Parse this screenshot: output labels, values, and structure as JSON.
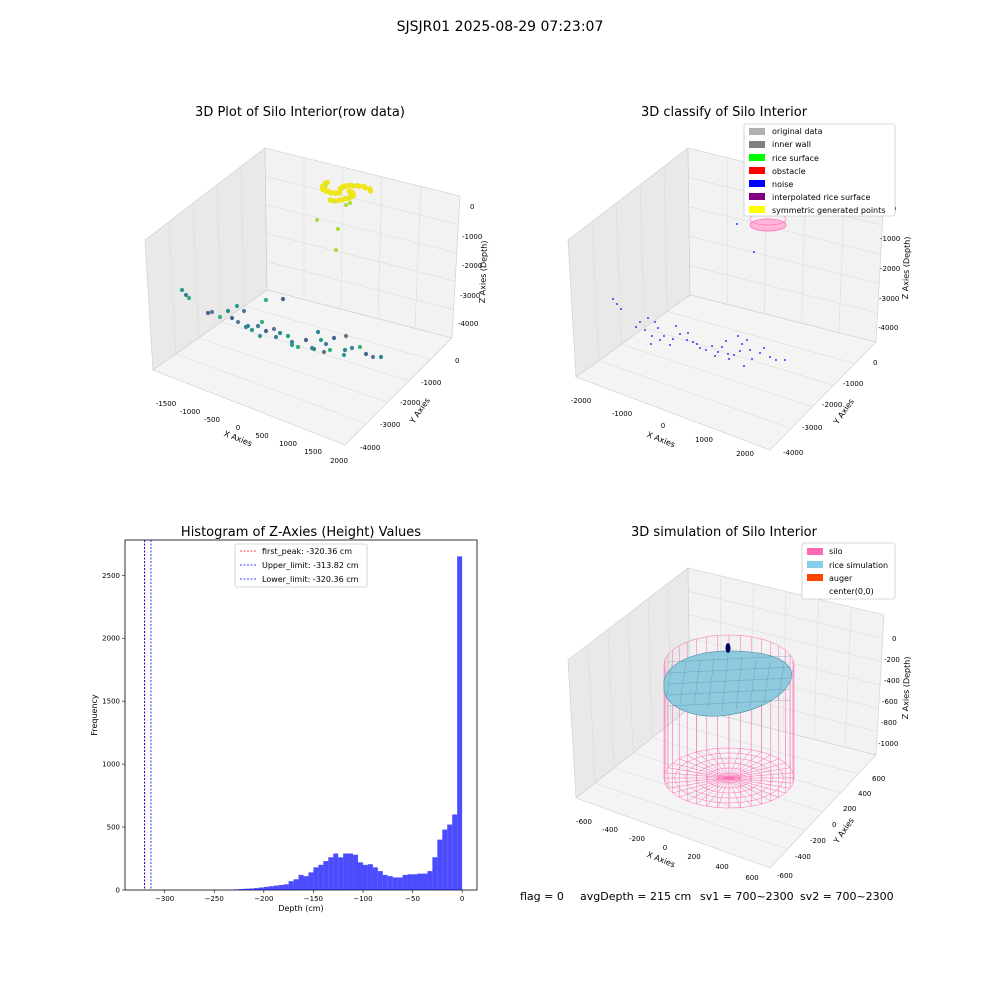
{
  "figure": {
    "suptitle": "SJSJR01 2025-08-29 07:23:07",
    "footer": {
      "flag": "flag = 0",
      "avg_depth": "avgDepth = 215 cm",
      "sv1": "sv1 = 700~2300",
      "sv2": "sv2 = 700~2300"
    }
  },
  "chart_data": [
    {
      "type": "scatter",
      "projection": "3d",
      "title": "3D Plot of Silo Interior(row data)",
      "xlabel": "X Axies",
      "ylabel": "Y Axies",
      "zlabel": "Z Axies (Depth)",
      "xticks": [
        "-1500",
        "-1000",
        "-500",
        "0",
        "500",
        "1000",
        "1500",
        "2000"
      ],
      "yticks": [
        "0",
        "-1000",
        "-2000",
        "-3000",
        "-4000"
      ],
      "zticks": [
        "0",
        "-1000",
        "-2000",
        "-3000",
        "-4000"
      ],
      "colormap": "viridis (colored by depth)",
      "points_description": "dense yellow cluster near depth 0; scattered teal/blue points near depth -4000"
    },
    {
      "type": "scatter",
      "projection": "3d",
      "title": "3D classify of Silo Interior",
      "xlabel": "X Axies",
      "ylabel": "Y Axies",
      "zlabel": "Z Axies (Depth)",
      "xticks": [
        "-2000",
        "-1000",
        "0",
        "1000",
        "2000"
      ],
      "yticks": [
        "0",
        "-1000",
        "-2000",
        "-3000",
        "-4000"
      ],
      "zticks": [
        "0",
        "-1000",
        "-2000",
        "-3000",
        "-4000"
      ],
      "legend": [
        {
          "label": "original data",
          "color": "#b0b0b0"
        },
        {
          "label": "inner wall",
          "color": "#808080"
        },
        {
          "label": "rice surface",
          "color": "#00ff00"
        },
        {
          "label": "obstacle",
          "color": "#ff0000"
        },
        {
          "label": "noise",
          "color": "#0000ff"
        },
        {
          "label": "interpolated rice surface",
          "color": "#800080"
        },
        {
          "label": "symmetric generated points",
          "color": "#ffff00"
        }
      ]
    },
    {
      "type": "bar",
      "title": "Histogram of Z-Axies (Height) Values",
      "xlabel": "Depth (cm)",
      "ylabel": "Frequency",
      "xlim": [
        -340,
        15
      ],
      "ylim": [
        0,
        2780
      ],
      "xticks": [
        -300,
        -250,
        -200,
        -150,
        -100,
        -50,
        0
      ],
      "yticks": [
        0,
        500,
        1000,
        1500,
        2000,
        2500
      ],
      "bin_width": 5,
      "bin_left_edges": [
        -240,
        -235,
        -230,
        -225,
        -220,
        -215,
        -210,
        -205,
        -200,
        -195,
        -190,
        -185,
        -180,
        -175,
        -170,
        -165,
        -160,
        -155,
        -150,
        -145,
        -140,
        -135,
        -130,
        -125,
        -120,
        -115,
        -110,
        -105,
        -100,
        -95,
        -90,
        -85,
        -80,
        -75,
        -70,
        -65,
        -60,
        -55,
        -50,
        -45,
        -40,
        -35,
        -30,
        -25,
        -20,
        -15,
        -10,
        -5
      ],
      "values": [
        2,
        3,
        5,
        8,
        10,
        12,
        15,
        20,
        25,
        30,
        35,
        40,
        45,
        70,
        85,
        120,
        110,
        140,
        180,
        200,
        230,
        260,
        290,
        260,
        290,
        290,
        280,
        220,
        200,
        205,
        180,
        150,
        120,
        110,
        100,
        100,
        120,
        125,
        125,
        130,
        130,
        150,
        260,
        400,
        480,
        520,
        600,
        2650
      ],
      "bar_color": "#0000ff",
      "vlines": [
        {
          "label": "first_peak: -320.36 cm",
          "x": -320.36,
          "color": "#ff0000"
        },
        {
          "label": "Upper_limit: -313.82 cm",
          "x": -313.82,
          "color": "#0000ff"
        },
        {
          "label": "Lower_limit: -320.36 cm",
          "x": -320.36,
          "color": "#0000ff"
        }
      ]
    },
    {
      "type": "surface",
      "projection": "3d",
      "title": "3D simulation of Silo Interior",
      "xlabel": "X Axies",
      "ylabel": "Y Axies",
      "zlabel": "Z Axies (Depth)",
      "xticks": [
        "-600",
        "-400",
        "-200",
        "0",
        "200",
        "400",
        "600"
      ],
      "yticks": [
        "600",
        "400",
        "200",
        "0",
        "-200",
        "-400",
        "-600"
      ],
      "zticks": [
        "0",
        "-200",
        "-400",
        "-600",
        "-800",
        "-1000"
      ],
      "legend": [
        {
          "label": "silo",
          "color": "#ff69b4"
        },
        {
          "label": "rice simulation",
          "color": "#87ceeb"
        },
        {
          "label": "auger",
          "color": "#ff4500"
        },
        {
          "label": "center(0,0)",
          "color": "#ffffff"
        }
      ]
    }
  ]
}
